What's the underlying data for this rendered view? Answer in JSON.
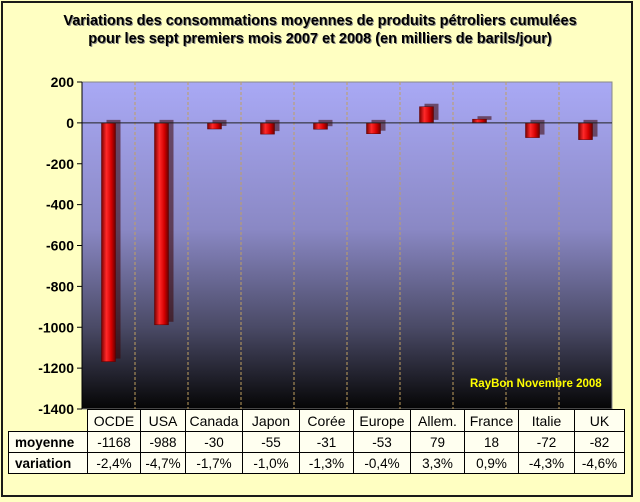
{
  "chart_data": {
    "type": "bar",
    "title": [
      "Variations des consommations moyennes  de produits pétroliers cumulées",
      "pour les sept premiers mois 2007 et 2008 (en milliers  de barils/jour)"
    ],
    "categories": [
      "OCDE",
      "USA",
      "Canada",
      "Japon",
      "Corée",
      "Europe",
      "Allem.",
      "France",
      "Italie",
      "UK"
    ],
    "series": [
      {
        "values": [
          -1168,
          -988,
          -30,
          -55,
          -31,
          -53,
          79,
          18,
          -72,
          -82
        ]
      }
    ],
    "ylim": [
      -1400,
      200
    ],
    "yticks": [
      200,
      0,
      -200,
      -400,
      -600,
      -800,
      -1000,
      -1200,
      -1400
    ],
    "grid": false,
    "bar_color": "#d40000",
    "plot_background": "gradient-violet-to-black"
  },
  "watermark": "RayBon  Novembre 2008",
  "table": {
    "rows": [
      {
        "label": "moyenne",
        "values": [
          "-1168",
          "-988",
          "-30",
          "-55",
          "-31",
          "-53",
          "79",
          "18",
          "-72",
          "-82"
        ]
      },
      {
        "label": "variation",
        "values": [
          "-2,4%",
          "-4,7%",
          "-1,7%",
          "-1,0%",
          "-1,3%",
          "-0,4%",
          "3,3%",
          "0,9%",
          "-4,3%",
          "-4,6%"
        ]
      }
    ]
  }
}
